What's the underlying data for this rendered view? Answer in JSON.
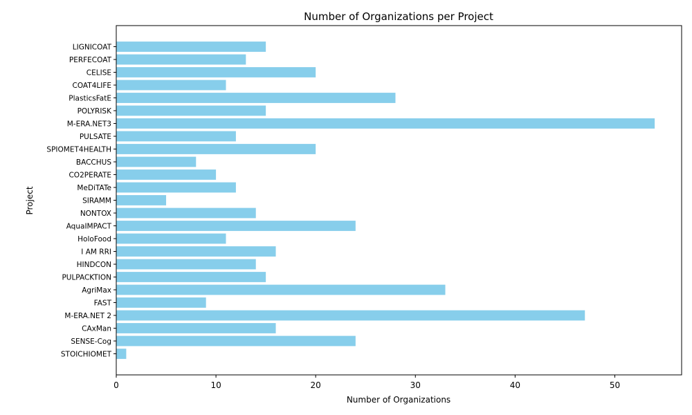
{
  "chart_data": {
    "type": "bar",
    "orientation": "horizontal",
    "title": "Number of Organizations per Project",
    "xlabel": "Number of Organizations",
    "ylabel": "Project",
    "xlim": [
      0,
      56.7
    ],
    "xticks": [
      0,
      10,
      20,
      30,
      40,
      50
    ],
    "bar_color": "#87ceeb",
    "grid": false,
    "categories": [
      "STOICHIOMET",
      "SENSE-Cog",
      "CAxMan",
      "M-ERA.NET 2",
      "FAST",
      "AgriMax",
      "PULPACKTION",
      "HINDCON",
      "I AM RRI",
      "HoloFood",
      "AquaIMPACT",
      "NONTOX",
      "SIRAMM",
      "MeDiTATe",
      "CO2PERATE",
      "BACCHUS",
      "SPIOMET4HEALTH",
      "PULSATE",
      "M-ERA.NET3",
      "POLYRISK",
      "PlasticsFatE",
      "COAT4LIFE",
      "CELISE",
      "PERFECOAT",
      "LIGNICOAT"
    ],
    "values": [
      1,
      24,
      16,
      47,
      9,
      33,
      15,
      14,
      16,
      11,
      24,
      14,
      5,
      12,
      10,
      8,
      20,
      12,
      54,
      15,
      28,
      11,
      20,
      13,
      15
    ]
  }
}
